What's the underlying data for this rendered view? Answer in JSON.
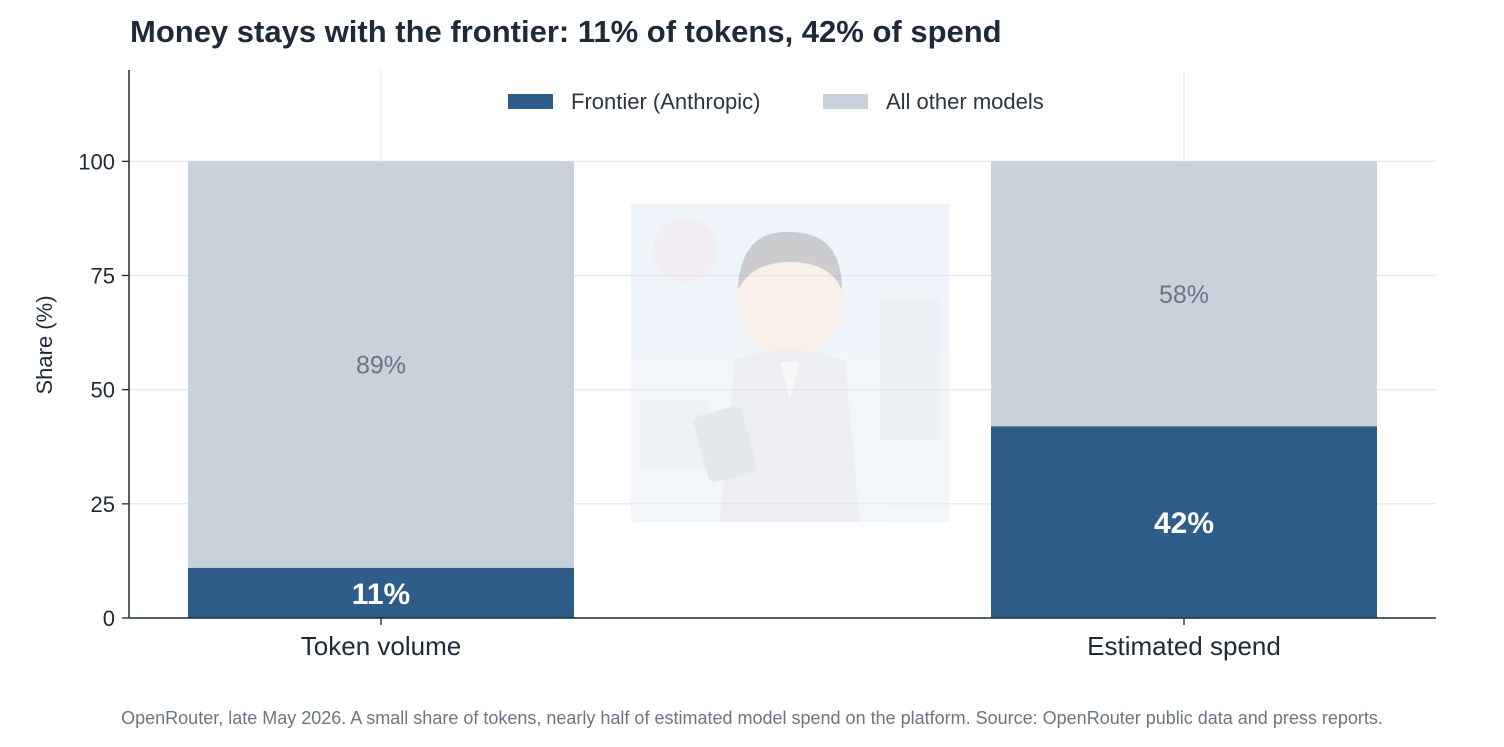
{
  "chart_data": {
    "type": "bar",
    "stacked": true,
    "title": "Money stays with the frontier: 11% of tokens, 42% of spend",
    "ylabel": "Share (%)",
    "xlabel": "",
    "categories": [
      "Token volume",
      "Estimated spend"
    ],
    "series": [
      {
        "name": "Frontier (Anthropic)",
        "values": [
          11,
          42
        ],
        "labels": [
          "11%",
          "42%"
        ],
        "color": "#2e5d8a"
      },
      {
        "name": "All other models",
        "values": [
          89,
          58
        ],
        "labels": [
          "89%",
          "58%"
        ],
        "color": "#c9d1db"
      }
    ],
    "ylim": [
      0,
      120
    ],
    "yticks": [
      0,
      25,
      50,
      75,
      100
    ],
    "grid": true,
    "legend": "top-center",
    "caption": "OpenRouter, late May 2026. A small share of tokens, nearly half of estimated model spend on the platform. Source: OpenRouter public data and press reports."
  },
  "watermark": {
    "description_icon": "cartoon-presenter-watermark"
  }
}
